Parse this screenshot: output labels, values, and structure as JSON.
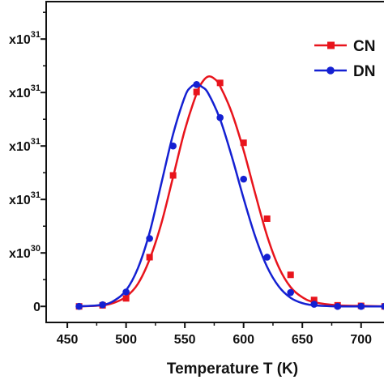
{
  "chart_data": {
    "type": "line",
    "xlabel": "Temperature T (K)",
    "ylabel": "",
    "xlim": [
      432,
      725
    ],
    "ylim": [
      -0.3,
      5.7
    ],
    "x_ticks": [
      450,
      500,
      550,
      600,
      650,
      700
    ],
    "x_tick_labels": [
      "450",
      "500",
      "550",
      "600",
      "650",
      "700"
    ],
    "y_ticks": [
      0,
      1,
      2,
      3,
      4,
      5
    ],
    "y_tick_labels": [
      {
        "prefix": "0",
        "exponent": ""
      },
      {
        "prefix": "x10",
        "exponent": "30"
      },
      {
        "prefix": "x10",
        "exponent": "31"
      },
      {
        "prefix": "x10",
        "exponent": "31"
      },
      {
        "prefix": "x10",
        "exponent": "31"
      },
      {
        "prefix": "x10",
        "exponent": "31"
      }
    ],
    "grid": false,
    "legend_position": "top-right",
    "series": [
      {
        "name": "CN",
        "color": "#e8141c",
        "marker": "square",
        "curve_x": [
          460,
          480,
          490,
          500,
          510,
          520,
          530,
          540,
          550,
          560,
          565,
          570,
          575,
          580,
          590,
          600,
          610,
          620,
          630,
          640,
          650,
          660,
          680,
          700,
          720
        ],
        "curve_y": [
          0,
          0.02,
          0.07,
          0.18,
          0.42,
          0.88,
          1.55,
          2.42,
          3.3,
          3.98,
          4.2,
          4.3,
          4.26,
          4.12,
          3.62,
          2.92,
          2.1,
          1.32,
          0.73,
          0.36,
          0.17,
          0.08,
          0.02,
          0.01,
          0
        ],
        "marker_x": [
          460,
          480,
          500,
          520,
          540,
          560,
          580,
          600,
          620,
          640,
          660,
          680,
          700,
          720
        ],
        "marker_y": [
          0,
          0.02,
          0.15,
          0.92,
          2.45,
          4.01,
          4.18,
          3.06,
          1.64,
          0.59,
          0.12,
          0.02,
          0.01,
          0
        ]
      },
      {
        "name": "DN",
        "color": "#1420d2",
        "marker": "circle",
        "curve_x": [
          460,
          480,
          490,
          500,
          510,
          520,
          530,
          540,
          550,
          555,
          560,
          565,
          570,
          580,
          590,
          600,
          610,
          620,
          630,
          640,
          650,
          660,
          680,
          700,
          720
        ],
        "curve_y": [
          0,
          0.03,
          0.11,
          0.3,
          0.71,
          1.38,
          2.3,
          3.22,
          3.92,
          4.1,
          4.15,
          4.1,
          3.98,
          3.5,
          2.8,
          2.02,
          1.3,
          0.74,
          0.37,
          0.16,
          0.06,
          0.02,
          0,
          0,
          0
        ],
        "marker_x": [
          460,
          480,
          500,
          520,
          540,
          560,
          580,
          600,
          620,
          640,
          660,
          680,
          700,
          720
        ],
        "marker_y": [
          0,
          0.03,
          0.27,
          1.27,
          3.0,
          4.15,
          3.53,
          2.38,
          0.92,
          0.26,
          0.04,
          0,
          0,
          0
        ]
      }
    ]
  }
}
